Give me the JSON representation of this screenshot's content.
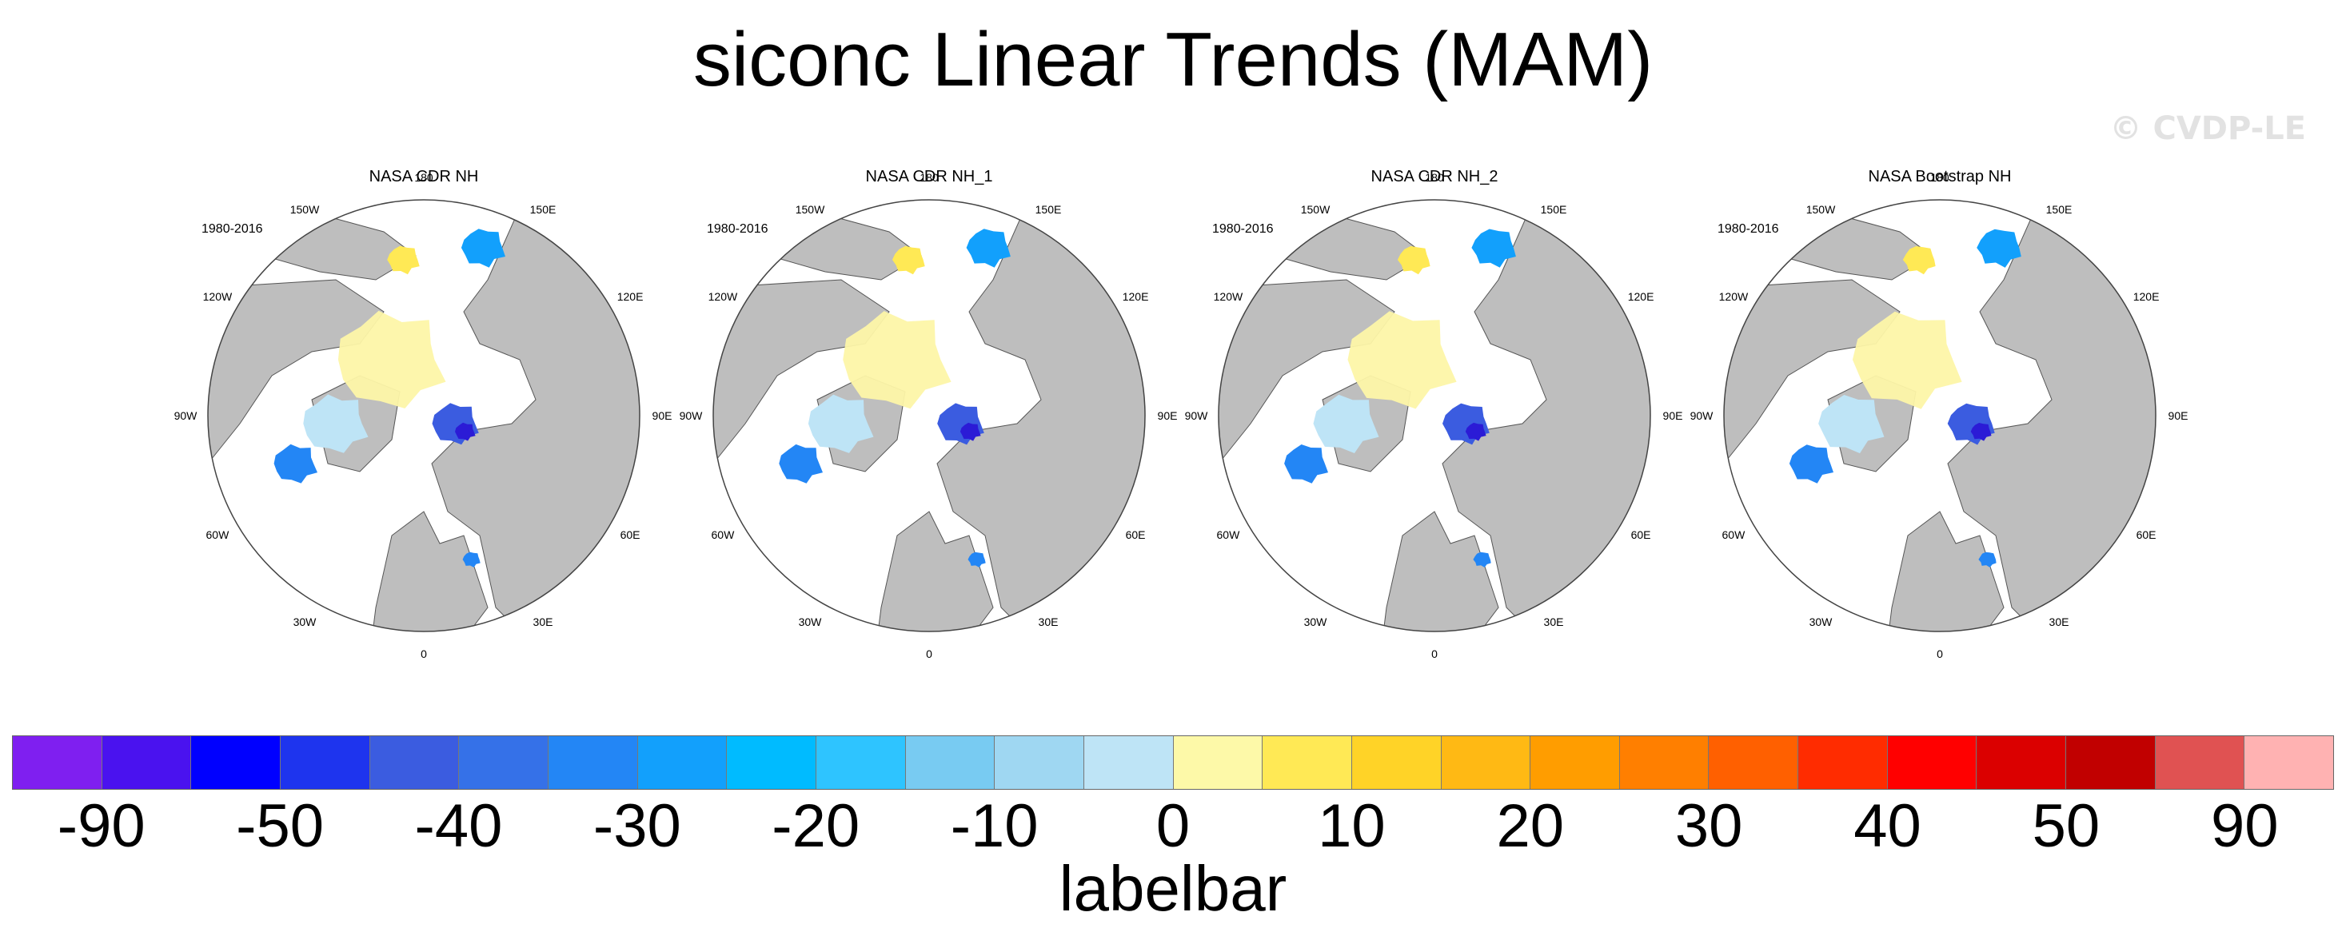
{
  "figure": {
    "title": "siconc Linear Trends (MAM)",
    "watermark": "© CVDP-LE"
  },
  "panels": [
    {
      "title": "NASA CDR NH",
      "period": "1980-2016"
    },
    {
      "title": "NASA CDR NH_1",
      "period": "1980-2016"
    },
    {
      "title": "NASA CDR NH_2",
      "period": "1980-2016"
    },
    {
      "title": "NASA Bootstrap NH",
      "period": "1980-2016"
    }
  ],
  "map": {
    "projection": "north polar stereographic",
    "longitude_labels": [
      "180",
      "150E",
      "120E",
      "90E",
      "60E",
      "30E",
      "0",
      "30W",
      "60W",
      "90W",
      "120W",
      "150W"
    ],
    "land_color": "#bebebe",
    "ocean_color": "#ffffff"
  },
  "labelbar": {
    "title": "labelbar",
    "colors": [
      "#7f1ff0",
      "#4a12ef",
      "#0000ff",
      "#1e34ee",
      "#3b5ce0",
      "#3571e8",
      "#2386f5",
      "#12a0fc",
      "#00bbff",
      "#2ec4ff",
      "#78cbf2",
      "#9fd7f2",
      "#bee4f6",
      "#fdf9a8",
      "#ffe955",
      "#ffd327",
      "#ffb914",
      "#ff9d00",
      "#ff7f00",
      "#ff6000",
      "#ff2c00",
      "#ff0000",
      "#db0000",
      "#c10000",
      "#e05252",
      "#ffb2b2"
    ],
    "tick_labels": [
      "-90",
      "-50",
      "-40",
      "-30",
      "-20",
      "-10",
      "0",
      "10",
      "20",
      "30",
      "40",
      "50",
      "90"
    ]
  }
}
